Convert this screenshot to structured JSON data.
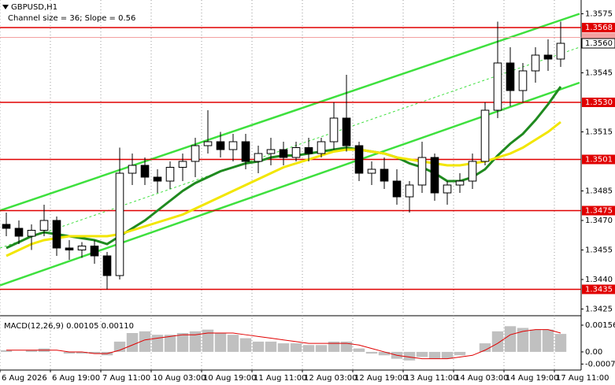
{
  "chart_data": {
    "type": "candlestick",
    "title": "GBPUSD,H1",
    "subtitle": "Channel size = 36; Slope = 0.56",
    "x": [
      2,
      6,
      10,
      14,
      18,
      22,
      26,
      30,
      34,
      38,
      42,
      46,
      50,
      54,
      58,
      62,
      66,
      70,
      74,
      78,
      82,
      86,
      90,
      94,
      98,
      102,
      106,
      110,
      114,
      118,
      122,
      126,
      130,
      134,
      138,
      142,
      146,
      150,
      154,
      158,
      162,
      166,
      170,
      174,
      178
    ],
    "xlim": [
      0,
      184
    ],
    "xticks": [
      {
        "value": 0,
        "label": "6 Aug 2026"
      },
      {
        "value": 16,
        "label": "6 Aug 19:00"
      },
      {
        "value": 32,
        "label": "7 Aug 11:00"
      },
      {
        "value": 48,
        "label": "10 Aug 03:00"
      },
      {
        "value": 64,
        "label": "10 Aug 19:00"
      },
      {
        "value": 80,
        "label": "11 Aug 11:00"
      },
      {
        "value": 96,
        "label": "12 Aug 03:00"
      },
      {
        "value": 112,
        "label": "12 Aug 19:00"
      },
      {
        "value": 128,
        "label": "13 Aug 11:00"
      },
      {
        "value": 144,
        "label": "14 Aug 03:00"
      },
      {
        "value": 160,
        "label": "14 Aug 19:00"
      },
      {
        "value": 176,
        "label": "17 Aug 11:00"
      }
    ],
    "grid": true,
    "ylim": [
      1.3422,
      1.3582
    ],
    "yticks": [
      1.3575,
      1.3545,
      1.3515,
      1.3485,
      {
        "value": 1.347,
        "label": "1.3470"
      },
      1.3455,
      {
        "value": 1.344,
        "label": "1.3440"
      },
      1.3425
    ],
    "open": [
      1.3468,
      1.3466,
      1.3462,
      1.3465,
      1.347,
      1.3456,
      1.3455,
      1.3457,
      1.3452,
      1.3442,
      1.3494,
      1.3498,
      1.3492,
      1.349,
      1.3497,
      1.35,
      1.3508,
      1.351,
      1.3506,
      1.351,
      1.35,
      1.3504,
      1.3506,
      1.3502,
      1.3507,
      1.3504,
      1.351,
      1.3522,
      1.3508,
      1.3494,
      1.3496,
      1.349,
      1.3482,
      1.3488,
      1.3502,
      1.3484,
      1.3488,
      1.349,
      1.35,
      1.3526,
      1.355,
      1.3536,
      1.3546,
      1.3554,
      1.3552
    ],
    "high": [
      1.3474,
      1.347,
      1.3468,
      1.3478,
      1.3472,
      1.346,
      1.3459,
      1.346,
      1.3454,
      1.3507,
      1.3504,
      1.3502,
      1.3496,
      1.35,
      1.3504,
      1.3512,
      1.3526,
      1.3515,
      1.3514,
      1.3514,
      1.3508,
      1.3512,
      1.351,
      1.351,
      1.3512,
      1.3512,
      1.353,
      1.3544,
      1.351,
      1.35,
      1.3502,
      1.3496,
      1.349,
      1.351,
      1.3504,
      1.349,
      1.3494,
      1.3504,
      1.353,
      1.3571,
      1.3558,
      1.355,
      1.3558,
      1.3562,
      1.3571
    ],
    "low": [
      1.3462,
      1.3458,
      1.3455,
      1.3462,
      1.3452,
      1.345,
      1.3451,
      1.3448,
      1.3435,
      1.344,
      1.3488,
      1.3488,
      1.3484,
      1.3486,
      1.349,
      1.3492,
      1.3504,
      1.3502,
      1.35,
      1.3496,
      1.3494,
      1.3498,
      1.3498,
      1.35,
      1.35,
      1.3502,
      1.3506,
      1.3505,
      1.349,
      1.3488,
      1.3486,
      1.3478,
      1.3474,
      1.3484,
      1.348,
      1.3478,
      1.3484,
      1.3486,
      1.3498,
      1.3522,
      1.3528,
      1.353,
      1.354,
      1.3546,
      1.3548
    ],
    "close": [
      1.3466,
      1.3462,
      1.3465,
      1.347,
      1.3456,
      1.3455,
      1.3457,
      1.3452,
      1.3442,
      1.3494,
      1.3498,
      1.3492,
      1.349,
      1.3497,
      1.35,
      1.3508,
      1.351,
      1.3506,
      1.351,
      1.35,
      1.3504,
      1.3506,
      1.3502,
      1.3507,
      1.3504,
      1.351,
      1.3522,
      1.3508,
      1.3494,
      1.3496,
      1.349,
      1.3482,
      1.3488,
      1.3502,
      1.3484,
      1.3488,
      1.349,
      1.35,
      1.3526,
      1.355,
      1.3536,
      1.3546,
      1.3554,
      1.3552,
      1.356
    ],
    "up_color": "#ffffff",
    "down_color": "#000000",
    "wick_color": "#000000",
    "series": [
      {
        "color": "#1f8a1f",
        "values": [
          1.3456,
          1.3459,
          1.3462,
          1.3464,
          1.3463,
          1.3462,
          1.3461,
          1.346,
          1.3458,
          1.3462,
          1.3466,
          1.347,
          1.3475,
          1.348,
          1.3485,
          1.3489,
          1.3492,
          1.3495,
          1.3497,
          1.3499,
          1.35,
          1.3502,
          1.3503,
          1.3503,
          1.3504,
          1.3505,
          1.3506,
          1.3507,
          1.3506,
          1.3505,
          1.3504,
          1.3502,
          1.3499,
          1.3497,
          1.3494,
          1.349,
          1.349,
          1.3492,
          1.3496,
          1.3503,
          1.3509,
          1.3514,
          1.3521,
          1.3529,
          1.3538
        ]
      },
      {
        "color": "#f2e600",
        "values": [
          1.3452,
          1.3455,
          1.3458,
          1.346,
          1.3461,
          1.3462,
          1.3462,
          1.3462,
          1.3462,
          1.3463,
          1.3465,
          1.3467,
          1.3469,
          1.3471,
          1.3473,
          1.3476,
          1.3479,
          1.3482,
          1.3485,
          1.3488,
          1.3491,
          1.3494,
          1.3497,
          1.3499,
          1.3501,
          1.3503,
          1.3505,
          1.3506,
          1.3506,
          1.3505,
          1.3504,
          1.3502,
          1.3501,
          1.35,
          1.3499,
          1.3498,
          1.3498,
          1.3499,
          1.35,
          1.3502,
          1.3504,
          1.3507,
          1.3511,
          1.3515,
          1.352
        ]
      }
    ],
    "trend_lines": [
      {
        "color": "#3ee03e",
        "x": [
          0,
          184
        ],
        "values": [
          1.3475,
          1.3575
        ]
      },
      {
        "color": "#3ee03e",
        "x": [
          0,
          184
        ],
        "values": [
          1.3437,
          1.354
        ]
      },
      {
        "color": "#3ee03e",
        "x": [
          0,
          184
        ],
        "values": [
          1.3456,
          1.3558
        ],
        "dashed": true
      }
    ],
    "level_color": "#e00000",
    "levels": [
      1.3568,
      {
        "value": 1.353,
        "label": "1.3530"
      },
      1.3501,
      1.3475,
      1.3435
    ],
    "bid_level": {
      "value": 1.3563,
      "color": "#f4a0a0"
    },
    "price": {
      "value": 1.356,
      "label": "1.3560"
    },
    "macd": {
      "title": "MACD(12,26,9) 0.00105 0.00110",
      "ylim": [
        -0.00106,
        0.00202
      ],
      "yticks": [
        0.00156,
        {
          "value": 0,
          "label": "0.00"
        },
        -0.00071
      ],
      "histogram_color": "#c0c0c0",
      "signal_color": "#e00000",
      "histogram": [
        0.0001,
        0,
        0.0001,
        0.0002,
        0,
        -0.0001,
        -0.0001,
        -0.0001,
        -0.0002,
        0.0006,
        0.0011,
        0.0012,
        0.001,
        0.001,
        0.0011,
        0.0012,
        0.0013,
        0.0011,
        0.001,
        0.0008,
        0.0006,
        0.0006,
        0.0005,
        0.0005,
        0.0004,
        0.0004,
        0.0006,
        0.0006,
        0.0002,
        -0.0001,
        -0.0002,
        -0.0004,
        -0.0005,
        -0.0003,
        -0.0004,
        -0.0004,
        -0.0002,
        0,
        0.0005,
        0.0012,
        0.0015,
        0.0014,
        0.0013,
        0.0013,
        0.00105
      ],
      "signal": [
        0.0001,
        0.0001,
        0.0001,
        0.0001,
        0.0001,
        0,
        0,
        -0.0001,
        -0.0001,
        0.0001,
        0.0004,
        0.0007,
        0.0008,
        0.0009,
        0.001,
        0.001,
        0.0011,
        0.0011,
        0.0011,
        0.001,
        0.0009,
        0.0008,
        0.0007,
        0.0006,
        0.0005,
        0.0005,
        0.0005,
        0.0005,
        0.0004,
        0.0002,
        0,
        -0.0002,
        -0.0003,
        -0.0004,
        -0.0004,
        -0.0004,
        -0.0003,
        -0.0002,
        0.0001,
        0.0005,
        0.001,
        0.0012,
        0.0013,
        0.0013,
        0.0011
      ]
    }
  }
}
